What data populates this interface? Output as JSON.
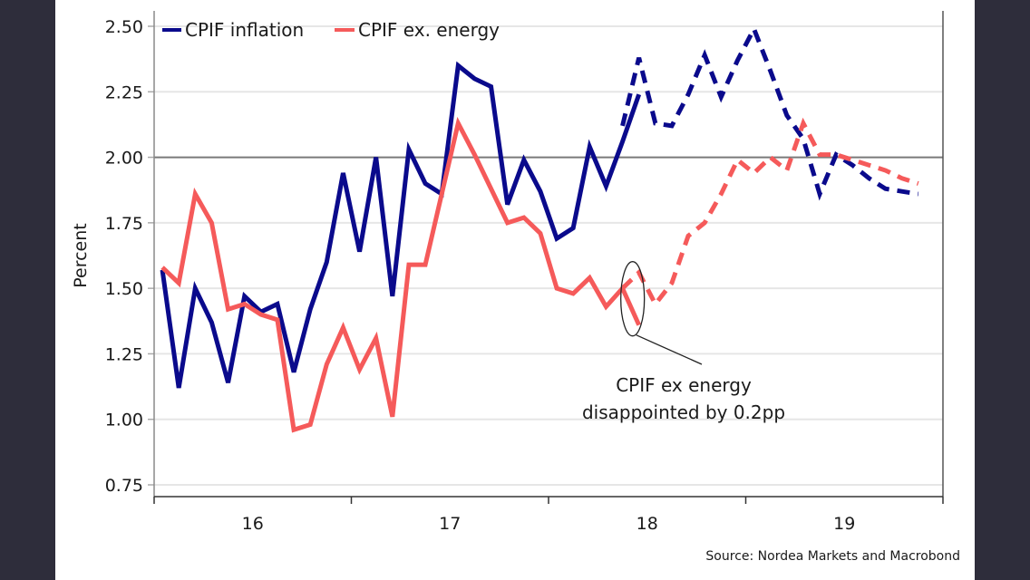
{
  "chart_data": {
    "type": "line",
    "title": "",
    "xlabel": "",
    "ylabel": "Percent",
    "ylim": [
      0.75,
      2.5
    ],
    "y_ticks": [
      "0.75",
      "1.00",
      "1.25",
      "1.50",
      "1.75",
      "2.00",
      "2.25",
      "2.50"
    ],
    "y_tick_values": [
      0.75,
      1.0,
      1.25,
      1.5,
      1.75,
      2.0,
      2.25,
      2.5
    ],
    "x_ticks": [
      "16",
      "17",
      "18",
      "19"
    ],
    "x_range_months": [
      0,
      48
    ],
    "x_unit": "months since Jan 2016",
    "grid": true,
    "reference_line": 2.0,
    "legend": {
      "position": "top-left",
      "entries": [
        "CPIF inflation",
        "CPIF ex. energy"
      ]
    },
    "series": [
      {
        "name": "CPIF inflation",
        "color": "#0a0a8c",
        "style": "solid",
        "x": [
          0,
          1,
          2,
          3,
          4,
          5,
          6,
          7,
          8,
          9,
          10,
          11,
          12,
          13,
          14,
          15,
          16,
          17,
          18,
          19,
          20,
          21,
          22,
          23,
          24,
          25,
          26,
          27,
          28,
          29
        ],
        "values": [
          1.57,
          1.12,
          1.5,
          1.37,
          1.14,
          1.47,
          1.41,
          1.44,
          1.18,
          1.42,
          1.6,
          1.94,
          1.64,
          2.0,
          1.47,
          2.03,
          1.9,
          1.86,
          2.35,
          2.3,
          2.27,
          1.82,
          1.99,
          1.87,
          1.69,
          1.73,
          2.04,
          1.89,
          2.06,
          2.24
        ]
      },
      {
        "name": "CPIF inflation forecast",
        "color": "#0a0a8c",
        "style": "dashed",
        "x": [
          28,
          29,
          30,
          31,
          32,
          33,
          34,
          35,
          36,
          37,
          38,
          39,
          40,
          41,
          42,
          43,
          44,
          45,
          46
        ],
        "values": [
          2.12,
          2.38,
          2.13,
          2.12,
          2.24,
          2.39,
          2.23,
          2.37,
          2.49,
          2.33,
          2.16,
          2.07,
          1.86,
          2.01,
          1.97,
          1.92,
          1.88,
          1.87,
          1.86
        ]
      },
      {
        "name": "CPIF ex. energy",
        "color": "#f55a5a",
        "style": "solid",
        "x": [
          0,
          1,
          2,
          3,
          4,
          5,
          6,
          7,
          8,
          9,
          10,
          11,
          12,
          13,
          14,
          15,
          16,
          17,
          18,
          19,
          20,
          21,
          22,
          23,
          24,
          25,
          26,
          27,
          28,
          29
        ],
        "values": [
          1.58,
          1.52,
          1.86,
          1.75,
          1.42,
          1.44,
          1.4,
          1.38,
          0.96,
          0.98,
          1.21,
          1.35,
          1.19,
          1.31,
          1.01,
          1.59,
          1.59,
          1.86,
          2.13,
          2.01,
          1.88,
          1.75,
          1.77,
          1.71,
          1.5,
          1.48,
          1.54,
          1.43,
          1.5,
          1.36
        ]
      },
      {
        "name": "CPIF ex. energy forecast",
        "color": "#f55a5a",
        "style": "dashed",
        "x": [
          28,
          29,
          30,
          31,
          32,
          33,
          34,
          35,
          36,
          37,
          38,
          39,
          40,
          41,
          42,
          43,
          44,
          45,
          46
        ],
        "values": [
          1.5,
          1.56,
          1.44,
          1.52,
          1.7,
          1.75,
          1.86,
          1.99,
          1.94,
          2.0,
          1.95,
          2.13,
          2.01,
          2.01,
          1.99,
          1.97,
          1.95,
          1.92,
          1.9
        ]
      }
    ],
    "annotations": [
      {
        "text_lines": [
          "CPIF ex energy",
          "disappointed by 0.2pp"
        ],
        "target_month": 29,
        "target_value": 1.46
      }
    ],
    "source": "Source: Nordea Markets and Macrobond"
  }
}
